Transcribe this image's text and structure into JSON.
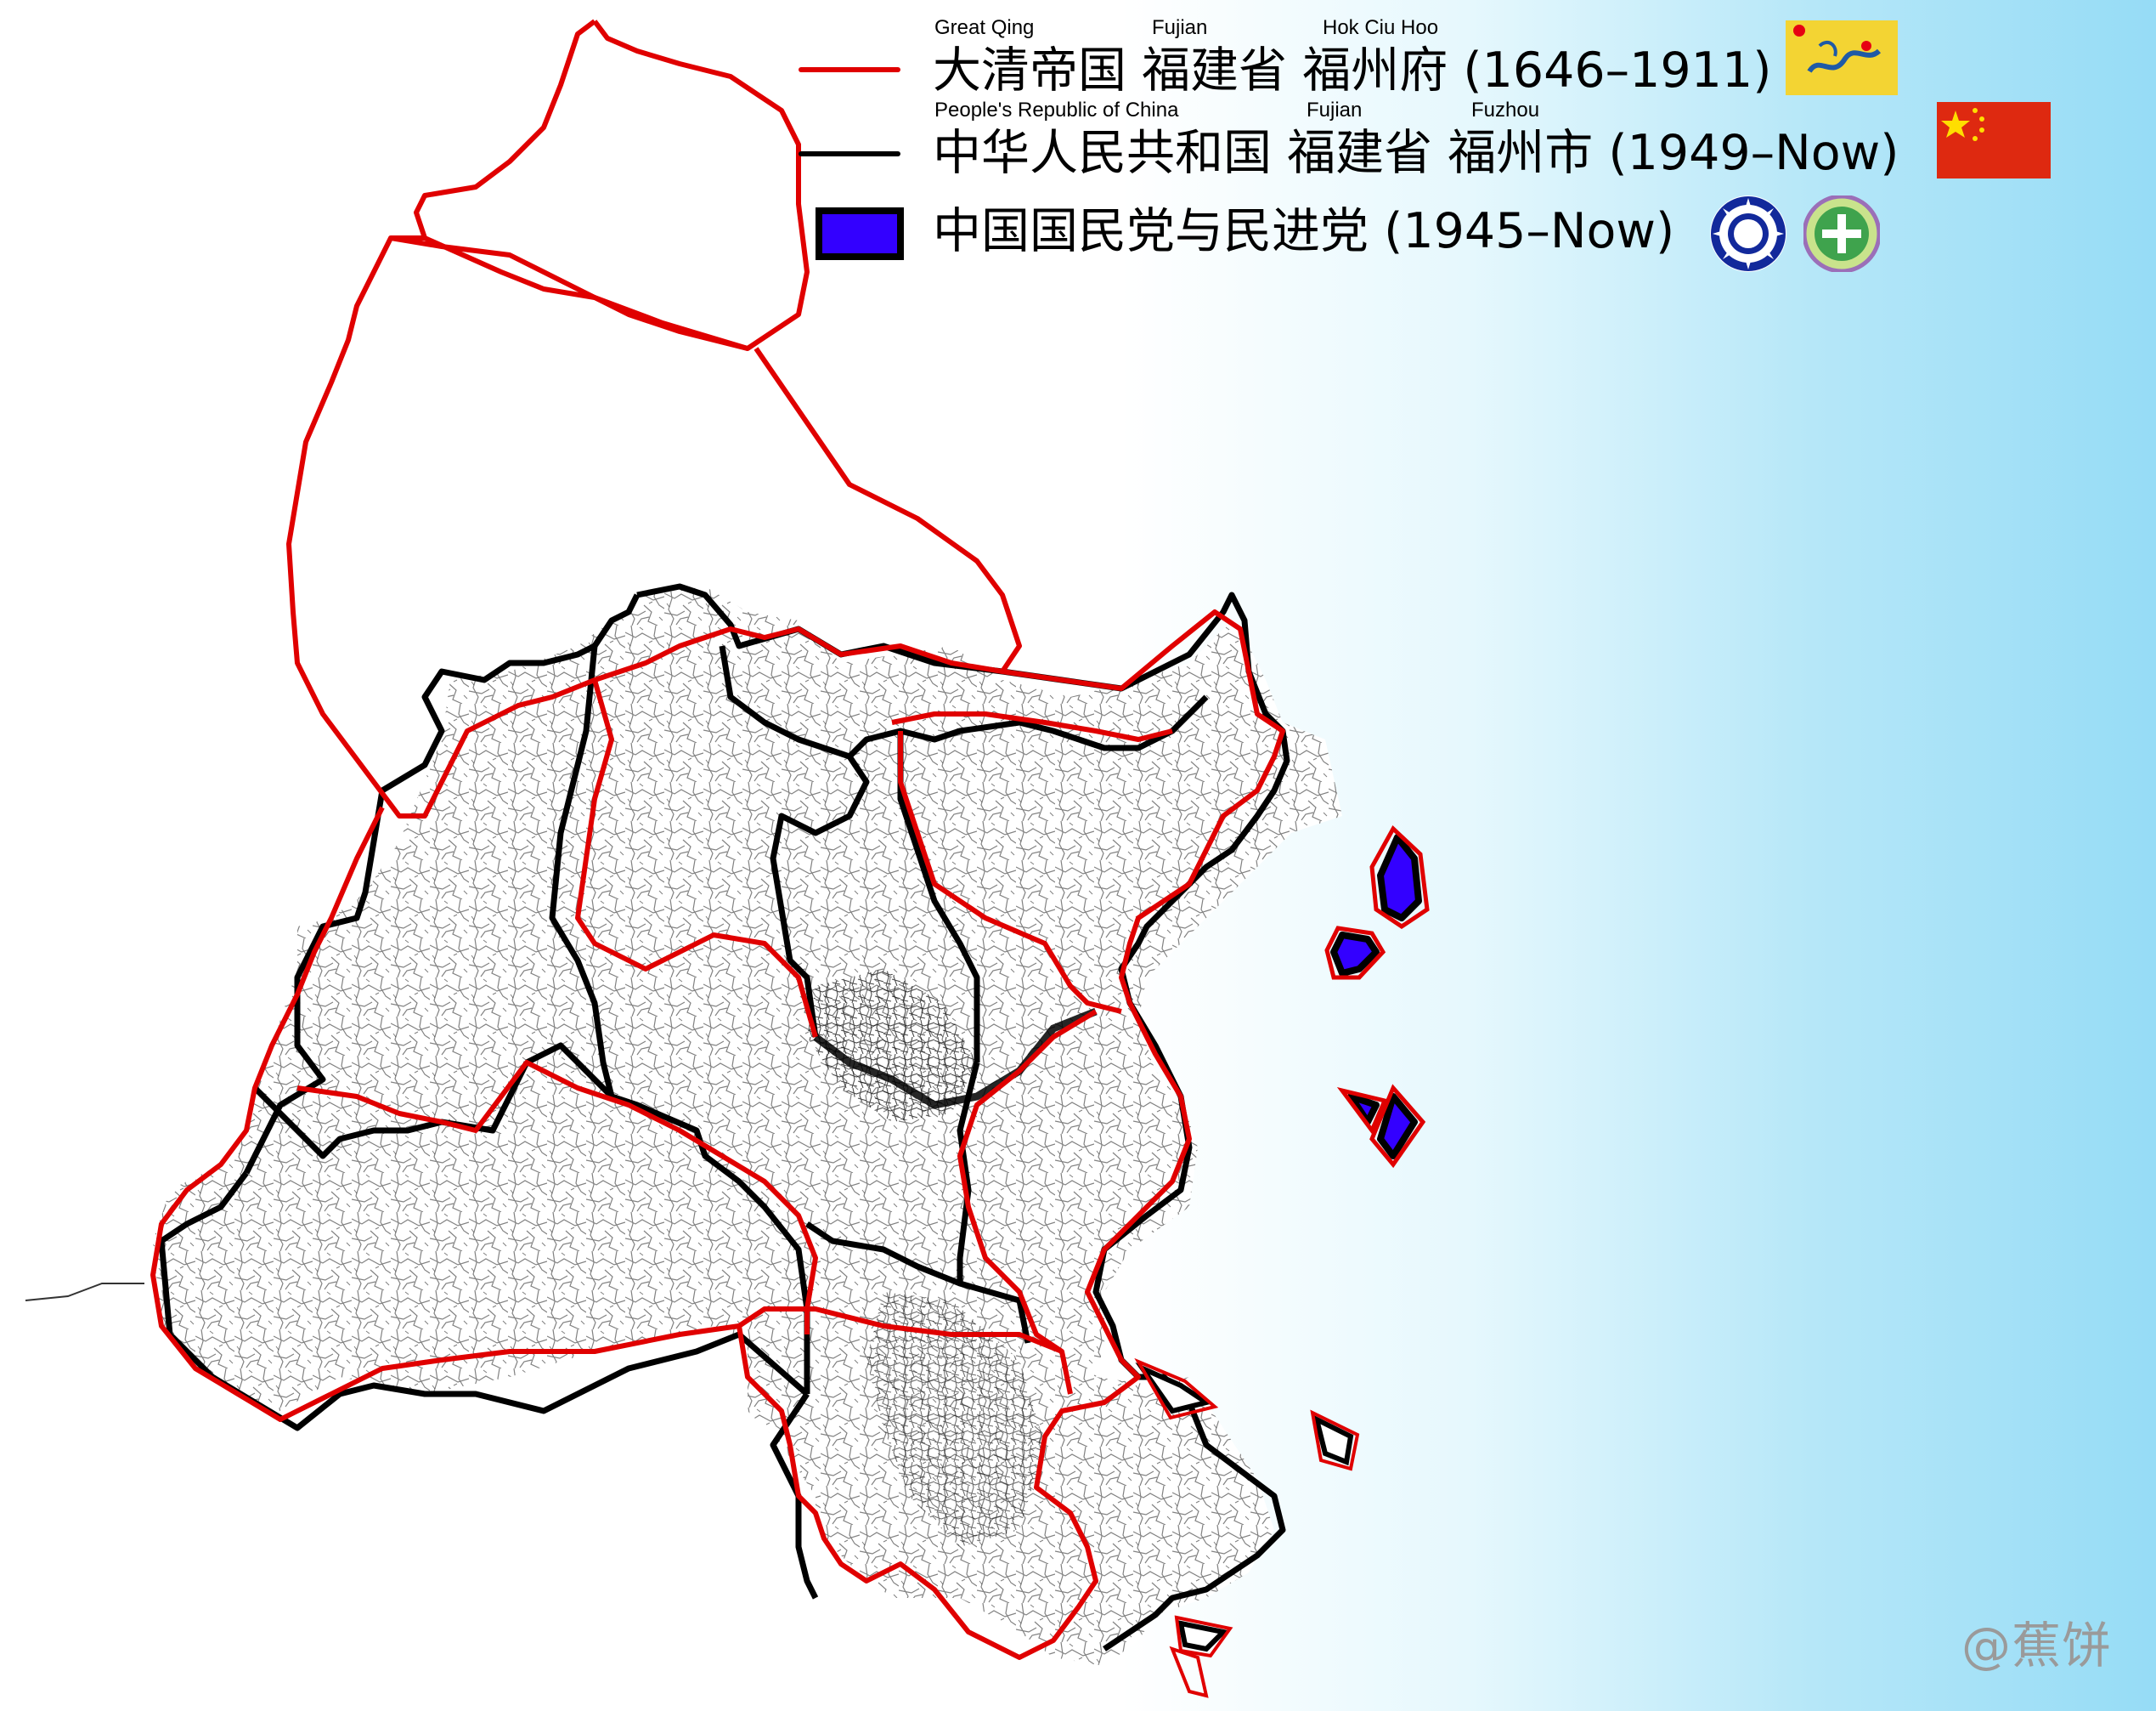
{
  "legend": {
    "qing": {
      "sub_country": "Great Qing",
      "sub_province": "Fujian",
      "sub_prefecture": "Hok Ciu Hoo",
      "text": "大清帝国 福建省 福州府 (1646–1911)",
      "line_color": "#e00000",
      "flag": "qing-dragon-flag"
    },
    "prc": {
      "sub_country": "People's Republic of China",
      "sub_province": "Fujian",
      "sub_city": "Fuzhou",
      "text": "中华人民共和国 福建省 福州市 (1949–Now)",
      "line_color": "#000000",
      "flag": "prc-flag"
    },
    "kmt_dpp": {
      "text": "中国国民党与民进党 (1945–Now)",
      "fill_color": "#3300ff",
      "border_color": "#000000",
      "emblems": [
        "kmt-emblem",
        "dpp-emblem"
      ]
    }
  },
  "map": {
    "background_left": "#ffffff",
    "background_right": "#96dcf6",
    "qing_border_color": "#e00000",
    "prc_border_color": "#000000",
    "held_islands_color": "#3300ff"
  },
  "watermark": "@蕉饼"
}
